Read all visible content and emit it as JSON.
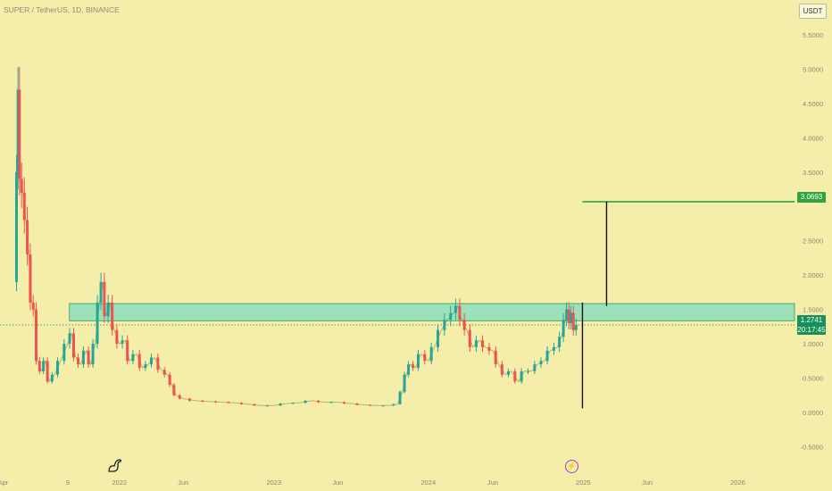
{
  "header": {
    "symbol_title": "SUPER / TetherUS, 1D, BINANCE",
    "currency_button": "USDT"
  },
  "price_tags": {
    "target": "3.0693",
    "last_price": "1.2741",
    "countdown": "20:17:45"
  },
  "colors": {
    "background": "#f5eeab",
    "up": "#26a69a",
    "down": "#ef5350",
    "zone": "#7fdcc0",
    "target_line": "#2ea33f",
    "last_price_tag": "#17905a"
  },
  "icons": {
    "logo": "dino-logo-icon",
    "event": "lightning-bolt-icon"
  },
  "chart_data": {
    "type": "line",
    "title": "SUPER / TetherUS, 1D, BINANCE",
    "xlabel": "",
    "ylabel": "",
    "x_range": [
      "2021-03-25",
      "2026-05-15"
    ],
    "y_range": [
      -0.65,
      5.72
    ],
    "grid": false,
    "x_ticks": [
      {
        "label": "Apr",
        "date": "2021-04-01"
      },
      {
        "label": "9",
        "date": "2021-09-01"
      },
      {
        "label": "2022",
        "date": "2022-01-01"
      },
      {
        "label": "Jun",
        "date": "2022-06-01"
      },
      {
        "label": "2023",
        "date": "2023-01-01"
      },
      {
        "label": "Jun",
        "date": "2023-06-01"
      },
      {
        "label": "2024",
        "date": "2024-01-01"
      },
      {
        "label": "Jun",
        "date": "2024-06-01"
      },
      {
        "label": "2025",
        "date": "2025-01-01"
      },
      {
        "label": "Jun",
        "date": "2025-06-01"
      },
      {
        "label": "2026",
        "date": "2026-01-01"
      }
    ],
    "y_ticks": [
      {
        "label": "5.5000",
        "value": 5.5
      },
      {
        "label": "5.0000",
        "value": 5.0
      },
      {
        "label": "4.5000",
        "value": 4.5
      },
      {
        "label": "4.0000",
        "value": 4.0
      },
      {
        "label": "3.5000",
        "value": 3.5
      },
      {
        "label": "2.5000",
        "value": 2.5
      },
      {
        "label": "2.0000",
        "value": 2.0
      },
      {
        "label": "1.5000",
        "value": 1.5
      },
      {
        "label": "1.0000",
        "value": 1.0
      },
      {
        "label": "0.5000",
        "value": 0.5
      },
      {
        "label": "0.0000",
        "value": 0.0
      },
      {
        "label": "-0.5000",
        "value": -0.5
      }
    ],
    "series": [
      {
        "values": [
          [
            "2021-05-01",
            1.9
          ],
          [
            "2021-05-05",
            3.5
          ],
          [
            "2021-05-08",
            4.7
          ],
          [
            "2021-05-12",
            3.4
          ],
          [
            "2021-05-18",
            3.2
          ],
          [
            "2021-05-25",
            2.8
          ],
          [
            "2021-06-01",
            2.3
          ],
          [
            "2021-06-08",
            1.6
          ],
          [
            "2021-06-15",
            1.5
          ],
          [
            "2021-06-22",
            0.75
          ],
          [
            "2021-07-01",
            0.6
          ],
          [
            "2021-07-10",
            0.75
          ],
          [
            "2021-07-20",
            0.45
          ],
          [
            "2021-08-01",
            0.55
          ],
          [
            "2021-08-15",
            0.75
          ],
          [
            "2021-09-01",
            1.0
          ],
          [
            "2021-09-10",
            1.15
          ],
          [
            "2021-09-20",
            0.8
          ],
          [
            "2021-10-01",
            0.7
          ],
          [
            "2021-10-15",
            0.9
          ],
          [
            "2021-10-25",
            0.7
          ],
          [
            "2021-11-05",
            1.0
          ],
          [
            "2021-11-15",
            1.6
          ],
          [
            "2021-11-22",
            1.9
          ],
          [
            "2021-12-01",
            1.4
          ],
          [
            "2021-12-10",
            1.6
          ],
          [
            "2021-12-20",
            1.2
          ],
          [
            "2022-01-01",
            1.0
          ],
          [
            "2022-01-15",
            1.05
          ],
          [
            "2022-01-25",
            0.75
          ],
          [
            "2022-02-10",
            0.85
          ],
          [
            "2022-02-25",
            0.65
          ],
          [
            "2022-03-10",
            0.7
          ],
          [
            "2022-03-25",
            0.8
          ],
          [
            "2022-04-10",
            0.62
          ],
          [
            "2022-04-25",
            0.55
          ],
          [
            "2022-05-05",
            0.4
          ],
          [
            "2022-05-15",
            0.25
          ],
          [
            "2022-06-01",
            0.2
          ],
          [
            "2022-07-01",
            0.17
          ],
          [
            "2022-08-01",
            0.16
          ],
          [
            "2022-09-01",
            0.15
          ],
          [
            "2022-10-01",
            0.14
          ],
          [
            "2022-11-01",
            0.12
          ],
          [
            "2022-12-01",
            0.1
          ],
          [
            "2023-01-01",
            0.1
          ],
          [
            "2023-02-01",
            0.13
          ],
          [
            "2023-03-01",
            0.14
          ],
          [
            "2023-04-01",
            0.17
          ],
          [
            "2023-05-01",
            0.15
          ],
          [
            "2023-06-01",
            0.15
          ],
          [
            "2023-07-01",
            0.13
          ],
          [
            "2023-08-01",
            0.11
          ],
          [
            "2023-09-01",
            0.1
          ],
          [
            "2023-10-01",
            0.1
          ],
          [
            "2023-10-20",
            0.12
          ],
          [
            "2023-11-01",
            0.3
          ],
          [
            "2023-11-10",
            0.55
          ],
          [
            "2023-11-20",
            0.7
          ],
          [
            "2023-12-01",
            0.65
          ],
          [
            "2023-12-15",
            0.85
          ],
          [
            "2024-01-01",
            0.75
          ],
          [
            "2024-01-15",
            0.95
          ],
          [
            "2024-02-01",
            1.2
          ],
          [
            "2024-02-15",
            1.35
          ],
          [
            "2024-03-01",
            1.45
          ],
          [
            "2024-03-10",
            1.55
          ],
          [
            "2024-03-20",
            1.35
          ],
          [
            "2024-04-01",
            1.2
          ],
          [
            "2024-04-15",
            0.95
          ],
          [
            "2024-05-01",
            1.05
          ],
          [
            "2024-05-15",
            0.95
          ],
          [
            "2024-06-01",
            0.9
          ],
          [
            "2024-06-15",
            0.7
          ],
          [
            "2024-07-01",
            0.55
          ],
          [
            "2024-07-15",
            0.6
          ],
          [
            "2024-08-01",
            0.45
          ],
          [
            "2024-08-15",
            0.6
          ],
          [
            "2024-09-01",
            0.6
          ],
          [
            "2024-09-15",
            0.7
          ],
          [
            "2024-10-01",
            0.75
          ],
          [
            "2024-10-15",
            0.9
          ],
          [
            "2024-11-01",
            0.95
          ],
          [
            "2024-11-10",
            1.1
          ],
          [
            "2024-11-20",
            1.35
          ],
          [
            "2024-11-25",
            1.5
          ],
          [
            "2024-12-01",
            1.3
          ],
          [
            "2024-12-05",
            1.45
          ],
          [
            "2024-12-12",
            1.2
          ],
          [
            "2024-12-18",
            1.2741
          ]
        ]
      }
    ],
    "annotations": {
      "zone": {
        "x_start": "2021-09-05",
        "x_end": "2026-06-30",
        "low": 1.335,
        "high": 1.585
      },
      "target_line": {
        "x_start": "2024-12-30",
        "x_end": "2026-06-30",
        "value": 3.0693
      },
      "drop_line": {
        "x": "2024-12-30",
        "from": 1.6,
        "to": 0.06
      },
      "rise_line": {
        "x": "2025-02-25",
        "from": 1.55,
        "to": 3.0693
      },
      "last_price_line": 1.2741
    }
  }
}
